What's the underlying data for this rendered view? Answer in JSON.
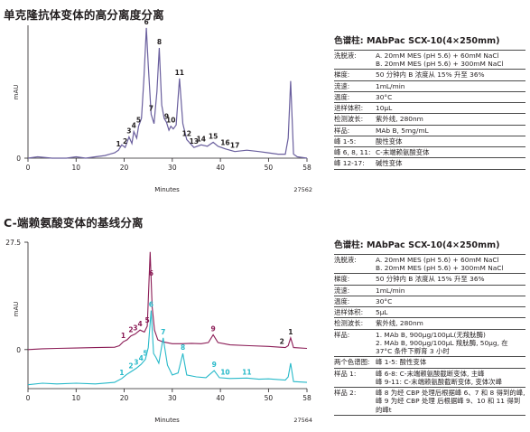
{
  "charts": [
    {
      "title": "单克隆抗体变体的高分离度分离",
      "ylabel": "mAU",
      "xlabel": "Minutes",
      "file_id": "27562",
      "y_tick": "0",
      "x_ticks": [
        "0",
        "10",
        "20",
        "30",
        "40",
        "50",
        "58"
      ]
    },
    {
      "title": "C-端赖氨酸变体的基线分离",
      "ylabel": "mAU",
      "xlabel": "Minutes",
      "file_id": "27564",
      "y_ticks": [
        "27.5",
        "0"
      ],
      "x_ticks": [
        "0",
        "10",
        "20",
        "30",
        "40",
        "50",
        "58"
      ]
    }
  ],
  "chart_data": [
    {
      "type": "line",
      "title": "单克隆抗体变体的高分离度分离",
      "xlabel": "Minutes",
      "ylabel": "mAU",
      "xlim": [
        0,
        58
      ],
      "ylim": [
        0,
        100
      ],
      "series": [
        {
          "color": "#6a5f9e",
          "x": [
            0,
            2,
            5,
            8,
            10,
            12,
            14,
            16,
            17,
            18,
            18.8,
            19.5,
            20.2,
            21,
            21.6,
            22,
            22.6,
            23,
            23.6,
            24.1,
            24.6,
            25,
            25.6,
            26.2,
            26.8,
            27.3,
            27.8,
            28.3,
            28.8,
            29.3,
            29.7,
            30.2,
            30.8,
            31.5,
            32.2,
            33,
            34.5,
            36,
            37.3,
            38.5,
            39.5,
            41,
            43,
            45.5,
            48,
            50,
            52,
            53.5,
            54.1,
            54.6,
            55.2,
            56,
            58
          ],
          "y": [
            0,
            1,
            0,
            0,
            1,
            0,
            1,
            2,
            3,
            4,
            6,
            10,
            8,
            16,
            11,
            20,
            15,
            24,
            30,
            60,
            98,
            70,
            33,
            26,
            50,
            83,
            40,
            30,
            27,
            21,
            24,
            22,
            25,
            60,
            26,
            14,
            8,
            10,
            9,
            12,
            9,
            7,
            5,
            6,
            5,
            4,
            3,
            3,
            15,
            58,
            3,
            1,
            0
          ]
        }
      ],
      "peak_labels": [
        {
          "label": "1",
          "x": 18.8
        },
        {
          "label": "2",
          "x": 20.2
        },
        {
          "label": "3",
          "x": 21
        },
        {
          "label": "4",
          "x": 22
        },
        {
          "label": "5",
          "x": 23
        },
        {
          "label": "6",
          "x": 24.6
        },
        {
          "label": "7",
          "x": 25.6
        },
        {
          "label": "8",
          "x": 27.3
        },
        {
          "label": "9",
          "x": 28.8
        },
        {
          "label": "10",
          "x": 29.7
        },
        {
          "label": "11",
          "x": 31.5
        },
        {
          "label": "12",
          "x": 33
        },
        {
          "label": "13",
          "x": 34.5
        },
        {
          "label": "14",
          "x": 36
        },
        {
          "label": "15",
          "x": 38.5
        },
        {
          "label": "16",
          "x": 41
        },
        {
          "label": "17",
          "x": 43
        }
      ]
    },
    {
      "type": "line",
      "title": "C-端赖氨酸变体的基线分离",
      "xlabel": "Minutes",
      "ylabel": "mAU",
      "xlim": [
        0,
        58
      ],
      "ylim": [
        -10,
        27.5
      ],
      "series": [
        {
          "color": "#8b1c56",
          "x": [
            0,
            3,
            6,
            10,
            14,
            18,
            19,
            19.8,
            20.6,
            21.4,
            22.3,
            23.3,
            24.2,
            24.8,
            25.4,
            25.8,
            26.3,
            27,
            28,
            30,
            32,
            34,
            36,
            37.5,
            38.5,
            39.5,
            42,
            46,
            50,
            53.5,
            54.1,
            54.6,
            55.2,
            58
          ],
          "y": [
            0,
            0.2,
            0.3,
            0.4,
            0.5,
            0.6,
            1,
            2,
            2.5,
            3.5,
            4,
            5,
            4.5,
            6,
            25,
            11,
            5,
            2.5,
            2,
            1.5,
            1.5,
            1.6,
            1.5,
            1.8,
            3.8,
            1.8,
            1.2,
            1,
            0.8,
            0.5,
            1,
            3,
            0.5,
            0.3
          ]
        },
        {
          "color": "#27b9c9",
          "x": [
            0,
            3,
            6,
            10,
            14,
            18,
            19.5,
            20.5,
            21.5,
            22.5,
            23.5,
            24.4,
            25,
            25.6,
            26.1,
            26.6,
            27.2,
            28.1,
            29,
            30,
            31.2,
            32.2,
            33,
            35,
            37,
            38.7,
            39.8,
            42,
            45.5,
            48,
            50,
            53.5,
            54.1,
            54.6,
            55.2,
            58
          ],
          "y": [
            -9,
            -8.6,
            -8.8,
            -8.6,
            -8.8,
            -8.4,
            -7.4,
            -6.4,
            -5.6,
            -4.8,
            -3.8,
            -2.5,
            0.5,
            10,
            -1,
            -2,
            -3.5,
            3,
            -4,
            -6.5,
            -6,
            -1,
            -6.5,
            -7,
            -7.2,
            -5.4,
            -7.2,
            -7.4,
            -7.3,
            -7.6,
            -7.5,
            -7.8,
            -7,
            -3.5,
            -8.2,
            -8.4
          ]
        }
      ],
      "peak_labels_top": [
        {
          "label": "1",
          "x": 19.8
        },
        {
          "label": "2",
          "x": 21.4
        },
        {
          "label": "3",
          "x": 22.3
        },
        {
          "label": "4",
          "x": 23.3
        },
        {
          "label": "5",
          "x": 24.8
        },
        {
          "label": "6",
          "x": 25.6
        },
        {
          "label": "9",
          "x": 38.5
        },
        {
          "label": "2",
          "x": 52.8
        },
        {
          "label": "1",
          "x": 54.6
        }
      ],
      "peak_labels_bottom": [
        {
          "label": "1",
          "x": 19.5
        },
        {
          "label": "2",
          "x": 21.4
        },
        {
          "label": "3",
          "x": 22.5
        },
        {
          "label": "4",
          "x": 23.5
        },
        {
          "label": "5",
          "x": 24.4
        },
        {
          "label": "6",
          "x": 25.6
        },
        {
          "label": "7",
          "x": 28.1
        },
        {
          "label": "8",
          "x": 32.2
        },
        {
          "label": "9",
          "x": 38.7
        },
        {
          "label": "10",
          "x": 41
        },
        {
          "label": "11",
          "x": 45.5
        }
      ]
    }
  ],
  "spec1": {
    "title": "色谱柱: MAbPac SCX-10(4×250mm)",
    "rows": [
      {
        "label": "洗脱液:",
        "lines": [
          "A. 20mM MES (pH 5.6) + 60mM NaCl",
          "B. 20mM MES (pH 5.6) + 300mM NaCl"
        ]
      },
      {
        "label": "梯度:",
        "lines": [
          "50 分钟内 B 浓度从 15% 升至 36%"
        ]
      },
      {
        "label": "流速:",
        "lines": [
          "1mL/min"
        ]
      },
      {
        "label": "温度:",
        "lines": [
          "30°C"
        ]
      },
      {
        "label": "进样体积:",
        "lines": [
          "10μL"
        ]
      },
      {
        "label": "检测波长:",
        "lines": [
          "紫外线, 280nm"
        ]
      },
      {
        "label": "样品:",
        "lines": [
          "MAb B, 5mg/mL"
        ]
      },
      {
        "label": "峰 1-5:",
        "lines": [
          "酸性变体"
        ]
      },
      {
        "label": "峰 6, 8, 11:",
        "lines": [
          "C-末端赖氨酸变体"
        ]
      },
      {
        "label": "峰 12-17:",
        "lines": [
          "碱性变体"
        ]
      }
    ]
  },
  "spec2": {
    "title": "色谱柱: MAbPac SCX-10(4×250mm)",
    "rows": [
      {
        "label": "洗脱液:",
        "lines": [
          "A. 20mM MES (pH 5.6) + 60mM NaCl",
          "B. 20mM MES (pH 5.6) + 300mM NaCl"
        ]
      },
      {
        "label": "梯度:",
        "lines": [
          "50 分钟内 B 浓度从 15% 升至 36%"
        ]
      },
      {
        "label": "流速:",
        "lines": [
          "1mL/min"
        ]
      },
      {
        "label": "温度:",
        "lines": [
          "30°C"
        ]
      },
      {
        "label": "进样体积:",
        "lines": [
          "5μL"
        ]
      },
      {
        "label": "检测波长:",
        "lines": [
          "紫外线, 280nm"
        ]
      },
      {
        "label": "样品:",
        "lines": [
          "1. MAb B, 900μg/100μL(无羧肽酶)",
          "2. MAb B, 900μg/100μL 羧肽酶, 50μg, 在 37°C 条件下孵育 3 小时"
        ]
      },
      {
        "label": "两个色谱图:",
        "lines": [
          "峰 1-5: 酸性变体"
        ]
      },
      {
        "label": "样品 1:",
        "lines": [
          "峰 6-8: C-末端赖氨酸截断变体, 主峰",
          "峰 9-11: C-末端赖氨酸截断变体, 变体次峰"
        ]
      },
      {
        "label": "样品 2:",
        "lines": [
          "峰 8 为经 CBP 处理后根据峰 6、7 和 8 得到的峰, 峰 9 为经 CBP 处理 后根据峰 9、10 和 11 得到的峰t"
        ]
      }
    ]
  }
}
